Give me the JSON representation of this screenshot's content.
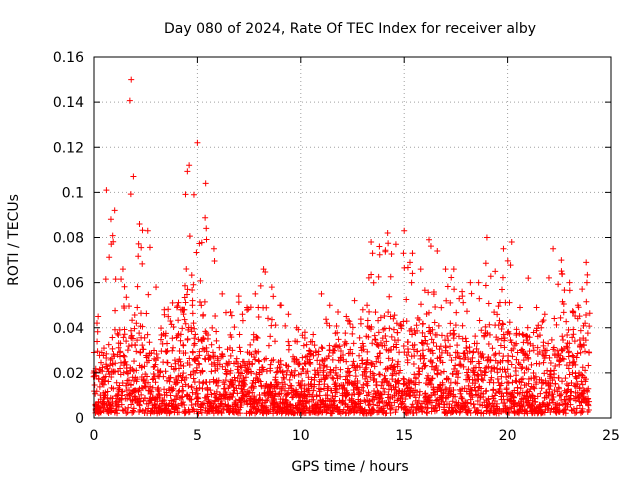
{
  "chart_data": {
    "type": "scatter",
    "title": "Day 080 of 2024, Rate Of TEC Index for receiver alby",
    "xlabel": "GPS time / hours",
    "ylabel": "ROTI / TECUs",
    "xlim": [
      0,
      25
    ],
    "ylim": [
      0,
      0.16
    ],
    "xticks": [
      0,
      5,
      10,
      15,
      20,
      25
    ],
    "yticks": [
      0,
      0.02,
      0.04,
      0.06,
      0.08,
      0.1,
      0.12,
      0.14,
      0.16
    ],
    "xtick_labels": [
      "0",
      "5",
      "10",
      "15",
      "20",
      "25"
    ],
    "ytick_labels": [
      "0",
      "0.02",
      "0.04",
      "0.06",
      "0.08",
      "0.1",
      "0.12",
      "0.14",
      "0.16"
    ],
    "grid": true,
    "marker": "+",
    "color": "#ff0000",
    "sampling_interval_hours": 0.05,
    "series": [
      {
        "name": "ROTI",
        "x_start": 0,
        "x_end": 24,
        "envelope_y_max": [
          0.045,
          0.101,
          0.092,
          0.066,
          0.15,
          0.086,
          0.083,
          0.058,
          0.048,
          0.051,
          0.048,
          0.112,
          0.122,
          0.104,
          0.075,
          0.055,
          0.047,
          0.054,
          0.049,
          0.055,
          0.066,
          0.058,
          0.05,
          0.046,
          0.04,
          0.038,
          0.037,
          0.055,
          0.05,
          0.047,
          0.045,
          0.052,
          0.048,
          0.078,
          0.076,
          0.082,
          0.077,
          0.083,
          0.073,
          0.066,
          0.079,
          0.074,
          0.066,
          0.066,
          0.056,
          0.06,
          0.06,
          0.08,
          0.065,
          0.075,
          0.078,
          0.049,
          0.062,
          0.049,
          0.046,
          0.075,
          0.07,
          0.06,
          0.05,
          0.069
        ],
        "envelope_y_typical": [
          0.02,
          0.03,
          0.035,
          0.04,
          0.045,
          0.04,
          0.035,
          0.03,
          0.035,
          0.04,
          0.048,
          0.055,
          0.06,
          0.05,
          0.04,
          0.03,
          0.028,
          0.03,
          0.032,
          0.028,
          0.025,
          0.025,
          0.024,
          0.022,
          0.025,
          0.025,
          0.028,
          0.03,
          0.03,
          0.032,
          0.032,
          0.035,
          0.035,
          0.04,
          0.04,
          0.045,
          0.045,
          0.045,
          0.042,
          0.04,
          0.045,
          0.04,
          0.035,
          0.035,
          0.032,
          0.032,
          0.035,
          0.04,
          0.04,
          0.04,
          0.04,
          0.035,
          0.035,
          0.032,
          0.032,
          0.04,
          0.045,
          0.04,
          0.04,
          0.04
        ],
        "floor_y": 0.002
      }
    ]
  }
}
